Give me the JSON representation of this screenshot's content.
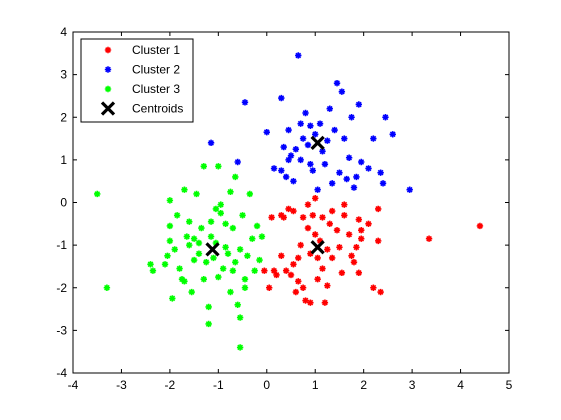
{
  "chart_data": {
    "type": "scatter",
    "title": "",
    "xlabel": "",
    "ylabel": "",
    "xlim": [
      -4,
      5
    ],
    "ylim": [
      -4,
      4
    ],
    "xticks": [
      -4,
      -3,
      -2,
      -1,
      0,
      1,
      2,
      3,
      4,
      5
    ],
    "yticks": [
      -4,
      -3,
      -2,
      -1,
      0,
      1,
      2,
      3,
      4
    ],
    "grid": false,
    "legend_position": "top-left",
    "series": [
      {
        "name": "Cluster 1",
        "color": "#ff0000",
        "marker": "asterisk",
        "points": [
          [
            -0.05,
            -1.6
          ],
          [
            0.05,
            -2.0
          ],
          [
            0.15,
            -1.6
          ],
          [
            0.2,
            -1.7
          ],
          [
            0.3,
            -1.25
          ],
          [
            0.3,
            -0.3
          ],
          [
            0.35,
            -0.35
          ],
          [
            0.4,
            -1.6
          ],
          [
            0.45,
            -0.15
          ],
          [
            0.5,
            -1.7
          ],
          [
            0.55,
            -1.45
          ],
          [
            0.6,
            -2.1
          ],
          [
            0.65,
            -1.3
          ],
          [
            0.7,
            -1.0
          ],
          [
            0.75,
            -0.35
          ],
          [
            0.8,
            -2.3
          ],
          [
            0.85,
            -0.6
          ],
          [
            0.9,
            -1.2
          ],
          [
            0.95,
            -0.3
          ],
          [
            1.0,
            -0.75
          ],
          [
            1.05,
            -1.8
          ],
          [
            1.1,
            -0.9
          ],
          [
            1.15,
            -0.35
          ],
          [
            1.2,
            -2.35
          ],
          [
            1.25,
            -1.1
          ],
          [
            1.3,
            -0.5
          ],
          [
            1.35,
            -1.3
          ],
          [
            1.45,
            -0.65
          ],
          [
            1.5,
            -1.05
          ],
          [
            1.55,
            -1.65
          ],
          [
            1.6,
            -0.3
          ],
          [
            1.7,
            -0.75
          ],
          [
            1.8,
            -1.4
          ],
          [
            1.85,
            -1.05
          ],
          [
            1.9,
            -0.4
          ],
          [
            1.95,
            -0.85
          ],
          [
            0.55,
            -0.2
          ],
          [
            0.65,
            -1.85
          ],
          [
            0.75,
            -2.0
          ],
          [
            0.9,
            -2.35
          ],
          [
            1.05,
            -1.3
          ],
          [
            0.85,
            -0.05
          ],
          [
            1.0,
            0.1
          ],
          [
            1.15,
            -1.55
          ],
          [
            1.25,
            -1.95
          ],
          [
            1.35,
            -0.2
          ],
          [
            1.6,
            -0.05
          ],
          [
            1.75,
            -1.25
          ],
          [
            1.9,
            -1.65
          ],
          [
            2.1,
            -0.5
          ],
          [
            2.2,
            -2.0
          ],
          [
            2.3,
            -0.9
          ],
          [
            2.35,
            -2.1
          ],
          [
            2.3,
            -0.15
          ],
          [
            3.35,
            -0.85
          ],
          [
            4.4,
            -0.55
          ],
          [
            1.95,
            -0.65
          ],
          [
            0.1,
            -0.35
          ]
        ]
      },
      {
        "name": "Cluster 2",
        "color": "#0000ff",
        "marker": "asterisk",
        "points": [
          [
            -1.15,
            1.4
          ],
          [
            -0.6,
            0.95
          ],
          [
            -0.45,
            2.35
          ],
          [
            0.0,
            1.65
          ],
          [
            0.15,
            0.8
          ],
          [
            0.3,
            0.75
          ],
          [
            0.35,
            1.3
          ],
          [
            0.4,
            0.6
          ],
          [
            0.45,
            1.7
          ],
          [
            0.5,
            1.1
          ],
          [
            0.55,
            0.5
          ],
          [
            0.6,
            1.25
          ],
          [
            0.7,
            1.0
          ],
          [
            0.75,
            1.5
          ],
          [
            0.8,
            2.1
          ],
          [
            0.85,
            1.35
          ],
          [
            0.9,
            0.9
          ],
          [
            0.95,
            0.75
          ],
          [
            1.0,
            1.6
          ],
          [
            1.05,
            0.3
          ],
          [
            1.1,
            1.85
          ],
          [
            1.15,
            1.2
          ],
          [
            1.2,
            0.9
          ],
          [
            1.25,
            1.45
          ],
          [
            1.3,
            2.2
          ],
          [
            1.35,
            0.45
          ],
          [
            1.4,
            1.7
          ],
          [
            1.45,
            2.8
          ],
          [
            1.5,
            0.7
          ],
          [
            1.55,
            2.6
          ],
          [
            1.6,
            1.5
          ],
          [
            1.65,
            0.55
          ],
          [
            1.7,
            1.05
          ],
          [
            1.75,
            2.0
          ],
          [
            1.8,
            0.35
          ],
          [
            1.85,
            0.6
          ],
          [
            1.9,
            2.3
          ],
          [
            1.95,
            0.95
          ],
          [
            2.1,
            0.8
          ],
          [
            2.2,
            1.5
          ],
          [
            2.35,
            0.7
          ],
          [
            2.4,
            0.45
          ],
          [
            2.45,
            2.0
          ],
          [
            2.6,
            1.6
          ],
          [
            2.95,
            0.3
          ],
          [
            0.65,
            3.45
          ],
          [
            0.3,
            2.45
          ],
          [
            0.7,
            1.85
          ],
          [
            0.45,
            1.0
          ],
          [
            0.9,
            1.8
          ]
        ]
      },
      {
        "name": "Cluster 3",
        "color": "#00ff00",
        "marker": "asterisk",
        "points": [
          [
            -3.5,
            0.2
          ],
          [
            -3.3,
            -2.0
          ],
          [
            -2.4,
            -1.45
          ],
          [
            -2.35,
            -1.6
          ],
          [
            -2.1,
            -1.45
          ],
          [
            -2.05,
            -1.25
          ],
          [
            -2.0,
            -0.9
          ],
          [
            -1.95,
            -2.25
          ],
          [
            -1.9,
            -1.1
          ],
          [
            -1.85,
            -0.3
          ],
          [
            -1.8,
            -1.55
          ],
          [
            -1.75,
            -1.8
          ],
          [
            -1.7,
            -1.85
          ],
          [
            -1.65,
            -0.8
          ],
          [
            -1.6,
            -1.0
          ],
          [
            -1.55,
            -2.1
          ],
          [
            -1.5,
            -0.85
          ],
          [
            -1.45,
            0.2
          ],
          [
            -1.4,
            -1.2
          ],
          [
            -1.35,
            -0.6
          ],
          [
            -1.3,
            -1.8
          ],
          [
            -1.25,
            -1.4
          ],
          [
            -1.2,
            -2.45
          ],
          [
            -1.15,
            -0.8
          ],
          [
            -1.1,
            -1.3
          ],
          [
            -1.05,
            -0.95
          ],
          [
            -1.0,
            -1.75
          ],
          [
            -0.95,
            -0.25
          ],
          [
            -0.9,
            -1.55
          ],
          [
            -0.85,
            -0.5
          ],
          [
            -0.8,
            -1.2
          ],
          [
            -0.75,
            -2.1
          ],
          [
            -0.7,
            -0.6
          ],
          [
            -0.65,
            -1.4
          ],
          [
            -0.6,
            -2.4
          ],
          [
            -0.55,
            -1.1
          ],
          [
            -0.5,
            -0.3
          ],
          [
            -0.45,
            -1.8
          ],
          [
            -0.4,
            -1.25
          ],
          [
            -0.35,
            0.2
          ],
          [
            -0.3,
            -0.85
          ],
          [
            -0.25,
            -1.6
          ],
          [
            -0.2,
            -0.55
          ],
          [
            -0.15,
            -1.35
          ],
          [
            -0.1,
            -0.8
          ],
          [
            -1.7,
            0.3
          ],
          [
            -1.3,
            0.85
          ],
          [
            -1.0,
            0.85
          ],
          [
            -0.65,
            0.6
          ],
          [
            -0.75,
            0.25
          ],
          [
            -1.2,
            -2.85
          ],
          [
            -0.55,
            -2.7
          ],
          [
            -0.55,
            -3.4
          ],
          [
            -0.95,
            -0.05
          ],
          [
            -1.05,
            -0.15
          ],
          [
            -1.15,
            -0.45
          ],
          [
            -2.0,
            -0.55
          ],
          [
            -1.4,
            -0.95
          ],
          [
            -0.85,
            -1.05
          ],
          [
            -0.45,
            -2.0
          ],
          [
            -1.6,
            -0.45
          ],
          [
            -2.0,
            0.05
          ],
          [
            -1.5,
            -1.35
          ],
          [
            -0.7,
            -1.6
          ]
        ]
      },
      {
        "name": "Centroids",
        "color": "#000000",
        "marker": "x",
        "points": [
          [
            1.05,
            1.4
          ],
          [
            -1.12,
            -1.1
          ],
          [
            1.05,
            -1.05
          ]
        ]
      }
    ]
  }
}
